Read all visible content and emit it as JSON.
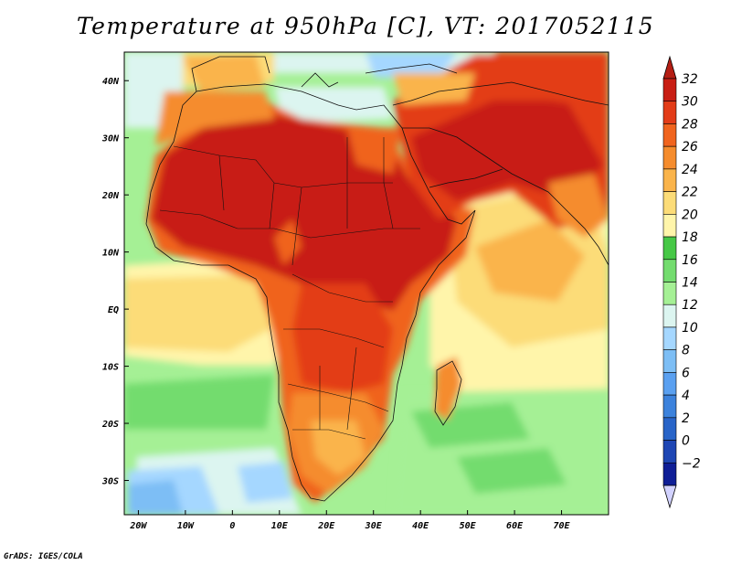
{
  "title": "Temperature at 950hPa [C], VT: 2017052115",
  "credit": "GrADS: IGES/COLA",
  "map": {
    "region": "Africa, Mediterranean, Arabian Peninsula, Western India Ocean",
    "lon_range": [
      -23,
      80
    ],
    "lat_range": [
      -36,
      45
    ],
    "x_ticks": [
      {
        "lon": -20,
        "label": "20W"
      },
      {
        "lon": -10,
        "label": "10W"
      },
      {
        "lon": 0,
        "label": "0"
      },
      {
        "lon": 10,
        "label": "10E"
      },
      {
        "lon": 20,
        "label": "20E"
      },
      {
        "lon": 30,
        "label": "30E"
      },
      {
        "lon": 40,
        "label": "40E"
      },
      {
        "lon": 50,
        "label": "50E"
      },
      {
        "lon": 60,
        "label": "60E"
      },
      {
        "lon": 70,
        "label": "70E"
      }
    ],
    "y_ticks": [
      {
        "lat": 40,
        "label": "40N"
      },
      {
        "lat": 30,
        "label": "30N"
      },
      {
        "lat": 20,
        "label": "20N"
      },
      {
        "lat": 10,
        "label": "10N"
      },
      {
        "lat": 0,
        "label": "EQ"
      },
      {
        "lat": -10,
        "label": "10S"
      },
      {
        "lat": -20,
        "label": "20S"
      },
      {
        "lat": -30,
        "label": "30S"
      }
    ]
  },
  "colorbar": {
    "levels": [
      "32",
      "30",
      "28",
      "26",
      "24",
      "22",
      "20",
      "18",
      "16",
      "14",
      "12",
      "10",
      "8",
      "6",
      "4",
      "2",
      "0",
      "−2"
    ],
    "colors": [
      "#c81e14",
      "#e33c18",
      "#f0641e",
      "#f58c2d",
      "#fab44b",
      "#fcdc78",
      "#fff5aa",
      "#46c846",
      "#73dc6e",
      "#a5f095",
      "#dcf5f0",
      "#a5d7ff",
      "#7dbef5",
      "#5aa0f0",
      "#3c82dc",
      "#2864c8",
      "#1e46b4",
      "#0f1e96"
    ],
    "top_triangle_color": "#b41e14",
    "bottom_triangle_color": "#d2d2ff"
  }
}
